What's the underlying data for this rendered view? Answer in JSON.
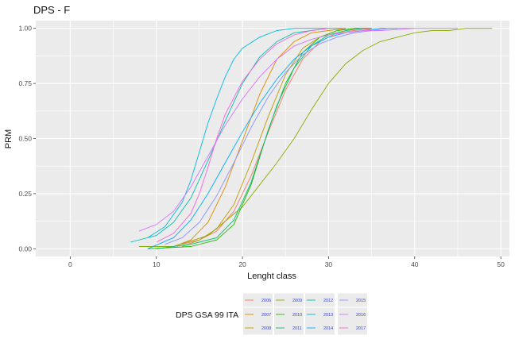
{
  "chart_data": {
    "type": "line",
    "title": "DPS - F",
    "xlabel": "Lenght class",
    "ylabel": "PRM",
    "xlim": [
      -4,
      51
    ],
    "ylim": [
      -0.035,
      1.035
    ],
    "x_ticks": [
      0,
      10,
      20,
      30,
      40,
      50
    ],
    "y_ticks": [
      0.0,
      0.25,
      0.5,
      0.75,
      1.0
    ],
    "x_tick_labels": [
      "0",
      "10",
      "20",
      "30",
      "40",
      "50"
    ],
    "y_tick_labels": [
      "0.00",
      "0.25",
      "0.50",
      "0.75",
      "1.00"
    ],
    "grid": true,
    "background": "#ebebeb",
    "legend": {
      "title": "DPS GSA 99 ITA",
      "position": "bottom"
    },
    "series": [
      {
        "name": "2006",
        "color": "#F8766D",
        "x": [
          13,
          15,
          17,
          19,
          21,
          23,
          25,
          27,
          29,
          31,
          33,
          35
        ],
        "y": [
          0.02,
          0.04,
          0.08,
          0.17,
          0.33,
          0.53,
          0.72,
          0.86,
          0.94,
          0.98,
          0.99,
          1.0
        ]
      },
      {
        "name": "2007",
        "color": "#E18A00",
        "x": [
          12,
          14,
          16,
          18,
          20,
          22,
          24,
          26,
          28,
          30,
          32
        ],
        "y": [
          0.01,
          0.04,
          0.12,
          0.28,
          0.49,
          0.7,
          0.86,
          0.94,
          0.98,
          0.99,
          1.0
        ]
      },
      {
        "name": "2008",
        "color": "#BE9C00",
        "x": [
          13,
          15,
          17,
          19,
          21,
          23,
          25,
          27,
          29,
          31,
          33,
          35
        ],
        "y": [
          0.01,
          0.04,
          0.09,
          0.2,
          0.39,
          0.6,
          0.79,
          0.91,
          0.96,
          0.99,
          1.0,
          1.0
        ]
      },
      {
        "name": "2009",
        "color": "#8CAB00",
        "x": [
          8,
          12,
          16,
          20,
          22,
          24,
          26,
          28,
          30,
          32,
          34,
          36,
          38,
          40,
          42,
          44,
          46,
          49
        ],
        "y": [
          0.01,
          0.01,
          0.06,
          0.19,
          0.29,
          0.39,
          0.5,
          0.63,
          0.75,
          0.84,
          0.9,
          0.94,
          0.96,
          0.98,
          0.99,
          0.99,
          1.0,
          1.0
        ]
      },
      {
        "name": "2010",
        "color": "#24B700",
        "x": [
          9,
          14,
          17,
          19,
          21,
          23,
          25,
          27,
          29,
          31,
          33,
          35
        ],
        "y": [
          0.0,
          0.01,
          0.04,
          0.11,
          0.29,
          0.54,
          0.75,
          0.89,
          0.96,
          0.99,
          1.0,
          1.0
        ]
      },
      {
        "name": "2011",
        "color": "#00BE70",
        "x": [
          10,
          14,
          17,
          19,
          21,
          22,
          24,
          26,
          28,
          30,
          32,
          34
        ],
        "y": [
          0.0,
          0.02,
          0.05,
          0.13,
          0.3,
          0.42,
          0.65,
          0.82,
          0.92,
          0.97,
          0.99,
          1.0
        ]
      },
      {
        "name": "2012",
        "color": "#00C1AB",
        "x": [
          7,
          10,
          12,
          14,
          16,
          18,
          20,
          22,
          24,
          26,
          28,
          30,
          32
        ],
        "y": [
          0.03,
          0.06,
          0.12,
          0.23,
          0.4,
          0.58,
          0.75,
          0.87,
          0.94,
          0.98,
          0.99,
          1.0,
          1.0
        ]
      },
      {
        "name": "2013",
        "color": "#00BBDA",
        "x": [
          9,
          11,
          13,
          14,
          15,
          16,
          17,
          18,
          19,
          20,
          22,
          24,
          26,
          28,
          30
        ],
        "y": [
          0.05,
          0.1,
          0.21,
          0.31,
          0.44,
          0.57,
          0.68,
          0.78,
          0.86,
          0.91,
          0.96,
          0.99,
          1.0,
          1.0,
          1.0
        ]
      },
      {
        "name": "2014",
        "color": "#00ACFC",
        "x": [
          9,
          12,
          14,
          16,
          18,
          20,
          22,
          24,
          26,
          28,
          30,
          32,
          34,
          36,
          38
        ],
        "y": [
          0.0,
          0.05,
          0.13,
          0.25,
          0.39,
          0.53,
          0.66,
          0.77,
          0.86,
          0.92,
          0.96,
          0.98,
          0.99,
          1.0,
          1.0
        ]
      },
      {
        "name": "2015",
        "color": "#8B93FF",
        "x": [
          11,
          13,
          15,
          17,
          19,
          21,
          23,
          25,
          27,
          29,
          31,
          33,
          35,
          37,
          40
        ],
        "y": [
          0.02,
          0.05,
          0.12,
          0.24,
          0.39,
          0.55,
          0.69,
          0.8,
          0.88,
          0.93,
          0.96,
          0.98,
          0.99,
          1.0,
          1.0
        ]
      },
      {
        "name": "2016",
        "color": "#D575FE",
        "x": [
          8,
          10,
          12,
          14,
          16,
          18,
          20,
          22,
          24,
          26,
          28,
          30,
          32,
          34,
          36,
          40,
          45
        ],
        "y": [
          0.08,
          0.11,
          0.17,
          0.28,
          0.42,
          0.56,
          0.68,
          0.78,
          0.86,
          0.92,
          0.95,
          0.97,
          0.98,
          0.99,
          0.99,
          1.0,
          1.0
        ]
      },
      {
        "name": "2017",
        "color": "#F962DD",
        "x": [
          10,
          12,
          14,
          15,
          16,
          17,
          18,
          20,
          22,
          24,
          26,
          28,
          30
        ],
        "y": [
          0.03,
          0.07,
          0.16,
          0.25,
          0.37,
          0.5,
          0.61,
          0.76,
          0.86,
          0.93,
          0.97,
          0.99,
          1.0
        ]
      }
    ]
  }
}
